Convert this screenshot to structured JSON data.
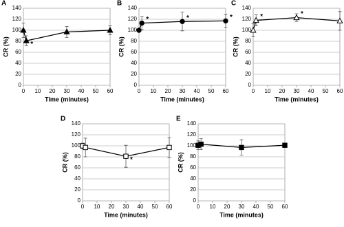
{
  "chart_data": [
    {
      "type": "line",
      "label": "A",
      "xlabel": "Time (minutes)",
      "ylabel": "CR (%)",
      "x": [
        0,
        2,
        30,
        60
      ],
      "series": [
        {
          "values": [
            100,
            81,
            97,
            100
          ],
          "error": [
            13,
            9,
            10,
            8
          ],
          "color": "#000000",
          "marker": "triangle",
          "filled": true
        }
      ],
      "xlim": [
        0,
        60
      ],
      "ylim": [
        0,
        140
      ],
      "xticks": [
        0,
        10,
        20,
        30,
        40,
        50,
        60
      ],
      "yticks": [
        0,
        20,
        40,
        60,
        80,
        100,
        120,
        140
      ],
      "grid": true,
      "annotations": [
        {
          "text": "*",
          "x": 2
        }
      ]
    },
    {
      "type": "line",
      "label": "B",
      "xlabel": "Time (minutes)",
      "ylabel": "CR (%)",
      "x": [
        0,
        2,
        30,
        60
      ],
      "series": [
        {
          "values": [
            100,
            113,
            116,
            117
          ],
          "error": [
            0,
            12,
            17,
            12
          ],
          "color": "#000000",
          "marker": "circle",
          "filled": true
        }
      ],
      "xlim": [
        0,
        60
      ],
      "ylim": [
        0,
        140
      ],
      "xticks": [
        0,
        10,
        20,
        30,
        40,
        50,
        60
      ],
      "yticks": [
        0,
        20,
        40,
        60,
        80,
        100,
        120,
        140
      ],
      "grid": true,
      "annotations": [
        {
          "text": "*",
          "x": 2
        },
        {
          "text": "*",
          "x": 30
        },
        {
          "text": "*",
          "x": 60
        }
      ]
    },
    {
      "type": "line",
      "label": "C",
      "xlabel": "Time (minutes)",
      "ylabel": "CR (%)",
      "x": [
        0,
        2,
        30,
        60
      ],
      "series": [
        {
          "values": [
            100,
            118,
            123,
            117
          ],
          "error": [
            12,
            10,
            7,
            17
          ],
          "color": "#000000",
          "marker": "triangle",
          "filled": false
        }
      ],
      "xlim": [
        0,
        60
      ],
      "ylim": [
        0,
        140
      ],
      "xticks": [
        0,
        10,
        20,
        30,
        40,
        50,
        60
      ],
      "yticks": [
        0,
        20,
        40,
        60,
        80,
        100,
        120,
        140
      ],
      "grid": true,
      "annotations": [
        {
          "text": "*",
          "x": 2
        },
        {
          "text": "*",
          "x": 30
        },
        {
          "text": "*",
          "x": 60
        }
      ]
    },
    {
      "type": "line",
      "label": "D",
      "xlabel": "Time (minutes)",
      "ylabel": "CR (%)",
      "x": [
        0,
        2,
        30,
        60
      ],
      "series": [
        {
          "values": [
            100,
            97,
            81,
            97
          ],
          "error": [
            5,
            17,
            20,
            18
          ],
          "color": "#000000",
          "marker": "square",
          "filled": false
        }
      ],
      "xlim": [
        0,
        60
      ],
      "ylim": [
        0,
        140
      ],
      "xticks": [
        0,
        10,
        20,
        30,
        40,
        50,
        60
      ],
      "yticks": [
        0,
        20,
        40,
        60,
        80,
        100,
        120,
        140
      ],
      "grid": true,
      "annotations": [
        {
          "text": "*",
          "x": 30
        }
      ]
    },
    {
      "type": "line",
      "label": "E",
      "xlabel": "Time (minutes)",
      "ylabel": "CR (%)",
      "x": [
        0,
        2,
        30,
        60
      ],
      "series": [
        {
          "values": [
            101,
            103,
            97,
            101
          ],
          "error": [
            8,
            10,
            14,
            3
          ],
          "color": "#000000",
          "marker": "square",
          "filled": true
        }
      ],
      "xlim": [
        0,
        60
      ],
      "ylim": [
        0,
        140
      ],
      "xticks": [
        0,
        10,
        20,
        30,
        40,
        50,
        60
      ],
      "yticks": [
        0,
        20,
        40,
        60,
        80,
        100,
        120,
        140
      ],
      "grid": true,
      "annotations": []
    }
  ]
}
